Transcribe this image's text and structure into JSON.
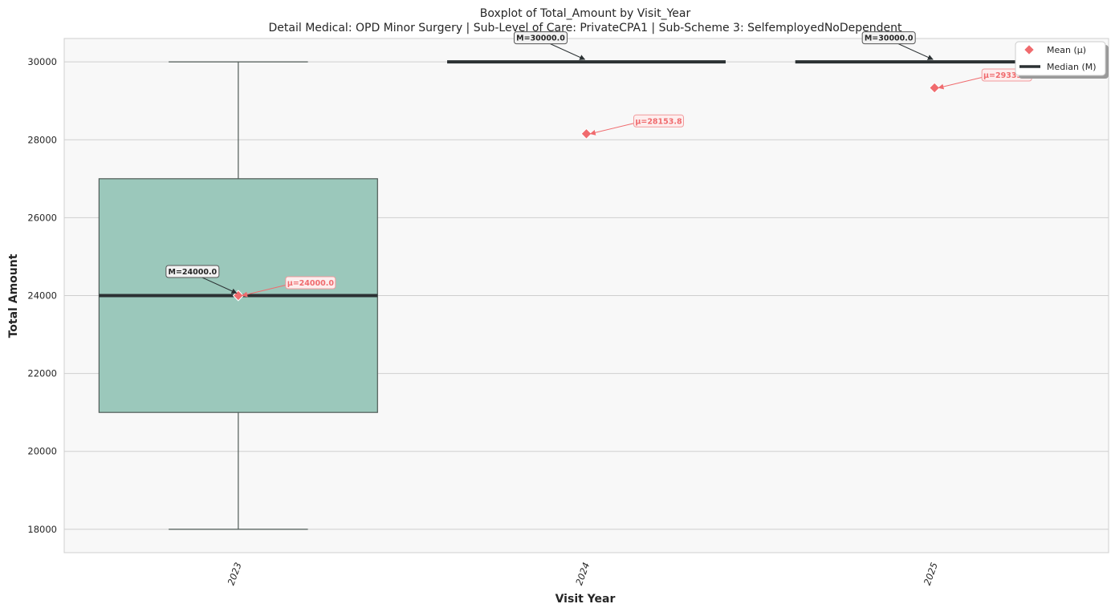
{
  "chart_data": {
    "type": "box",
    "title": "Boxplot of Total_Amount by Visit_Year",
    "subtitle": "Detail Medical: OPD Minor Surgery | Sub-Level of Care: PrivateCPA1 | Sub-Scheme 3: SelfemployedNoDependent",
    "xlabel": "Visit Year",
    "ylabel": "Total Amount",
    "ylim": [
      17400,
      30600
    ],
    "yticks": [
      18000,
      20000,
      22000,
      24000,
      26000,
      28000,
      30000
    ],
    "yticks_labels": [
      "18000",
      "20000",
      "22000",
      "24000",
      "26000",
      "28000",
      "30000"
    ],
    "categories": [
      "2023",
      "2024",
      "2025"
    ],
    "boxes": [
      {
        "category": "2023",
        "whisker_low": 18000,
        "q1": 21000,
        "median": 24000,
        "q3": 27000,
        "whisker_high": 30000,
        "mean": 24000.0,
        "median_label": "M=24000.0",
        "mean_label": "μ=24000.0"
      },
      {
        "category": "2024",
        "whisker_low": 30000,
        "q1": 30000,
        "median": 30000,
        "q3": 30000,
        "whisker_high": 30000,
        "mean": 28153.8,
        "median_label": "M=30000.0",
        "mean_label": "μ=28153.8"
      },
      {
        "category": "2025",
        "whisker_low": 30000,
        "q1": 30000,
        "median": 30000,
        "q3": 30000,
        "whisker_high": 30000,
        "mean": 29333.3,
        "median_label": "M=30000.0",
        "mean_label": "μ=29333.3"
      }
    ],
    "legend": {
      "position": "top-right",
      "items": [
        {
          "label": "Mean (μ)",
          "marker": "diamond"
        },
        {
          "label": "Median (M)",
          "marker": "line"
        }
      ]
    },
    "grid": true,
    "colors": {
      "box_fill": "#9bc8bb",
      "box_edge": "#4f5a56",
      "median": "#2b3133",
      "mean": "#f06b6e",
      "plot_bg": "#f8f8f8",
      "grid": "#cfcfcf"
    }
  }
}
